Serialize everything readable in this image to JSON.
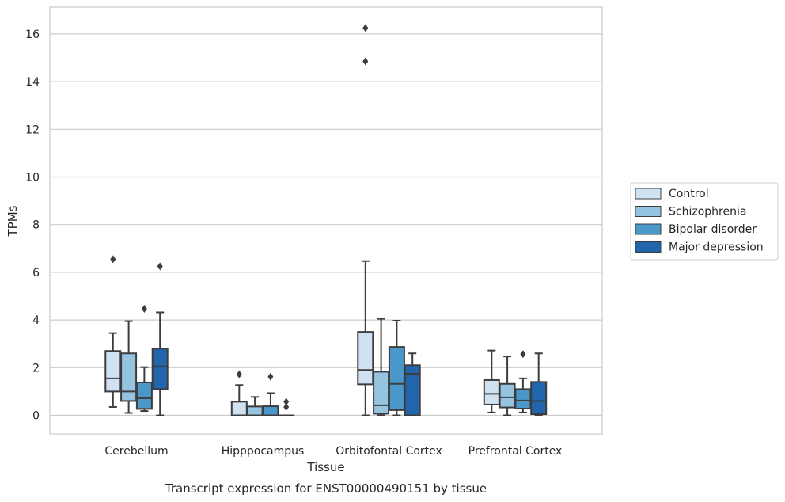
{
  "chart_data": {
    "type": "box",
    "title": "",
    "caption": "Transcript expression for ENST00000490151 by tissue",
    "xlabel": "Tissue",
    "ylabel": "TPMs",
    "ylim": [
      -0.8,
      17.1
    ],
    "yticks": [
      0,
      2,
      4,
      6,
      8,
      10,
      12,
      14,
      16
    ],
    "grid": "horizontal",
    "legend_position": "right, outside plot",
    "categories": [
      "Cerebellum",
      "Hipppocampus",
      "Orbitofontal Cortex",
      "Prefrontal Cortex"
    ],
    "series": [
      {
        "name": "Control",
        "color": "#d0e1f2",
        "boxes": [
          {
            "min": 0.35,
            "q1": 1.0,
            "median": 1.55,
            "q3": 2.7,
            "max": 3.45,
            "outliers": [
              6.55
            ]
          },
          {
            "min": 0.0,
            "q1": 0.0,
            "median": 0.0,
            "q3": 0.57,
            "max": 1.27,
            "outliers": [
              1.72
            ]
          },
          {
            "min": 0.0,
            "q1": 1.3,
            "median": 1.9,
            "q3": 3.5,
            "max": 6.47,
            "outliers": [
              16.25,
              14.85
            ]
          },
          {
            "min": 0.12,
            "q1": 0.45,
            "median": 0.9,
            "q3": 1.48,
            "max": 2.72,
            "outliers": []
          }
        ]
      },
      {
        "name": "Schizophrenia",
        "color": "#94c4df",
        "boxes": [
          {
            "min": 0.1,
            "q1": 0.6,
            "median": 1.0,
            "q3": 2.6,
            "max": 3.95,
            "outliers": []
          },
          {
            "min": 0.0,
            "q1": 0.0,
            "median": 0.0,
            "q3": 0.37,
            "max": 0.77,
            "outliers": []
          },
          {
            "min": 0.0,
            "q1": 0.07,
            "median": 0.42,
            "q3": 1.83,
            "max": 4.05,
            "outliers": []
          },
          {
            "min": 0.0,
            "q1": 0.33,
            "median": 0.75,
            "q3": 1.32,
            "max": 2.47,
            "outliers": []
          }
        ]
      },
      {
        "name": "Bipolar disorder",
        "color": "#4a98c9",
        "boxes": [
          {
            "min": 0.18,
            "q1": 0.27,
            "median": 0.72,
            "q3": 1.38,
            "max": 2.02,
            "outliers": [
              4.47
            ]
          },
          {
            "min": 0.0,
            "q1": 0.0,
            "median": 0.0,
            "q3": 0.38,
            "max": 0.93,
            "outliers": [
              1.62
            ]
          },
          {
            "min": 0.0,
            "q1": 0.22,
            "median": 1.32,
            "q3": 2.87,
            "max": 3.97,
            "outliers": []
          },
          {
            "min": 0.12,
            "q1": 0.28,
            "median": 0.62,
            "q3": 1.1,
            "max": 1.55,
            "outliers": [
              2.57
            ]
          }
        ]
      },
      {
        "name": "Major depression",
        "color": "#2166ac",
        "boxes": [
          {
            "min": 0.0,
            "q1": 1.1,
            "median": 2.05,
            "q3": 2.8,
            "max": 4.32,
            "outliers": [
              6.25
            ]
          },
          {
            "min": 0.0,
            "q1": 0.0,
            "median": 0.0,
            "q3": 0.0,
            "max": 0.0,
            "outliers": [
              0.57,
              0.35
            ]
          },
          {
            "min": 0.0,
            "q1": 0.0,
            "median": 1.75,
            "q3": 2.1,
            "max": 2.6,
            "outliers": []
          },
          {
            "min": 0.0,
            "q1": 0.05,
            "median": 0.6,
            "q3": 1.4,
            "max": 2.6,
            "outliers": []
          }
        ]
      }
    ]
  }
}
